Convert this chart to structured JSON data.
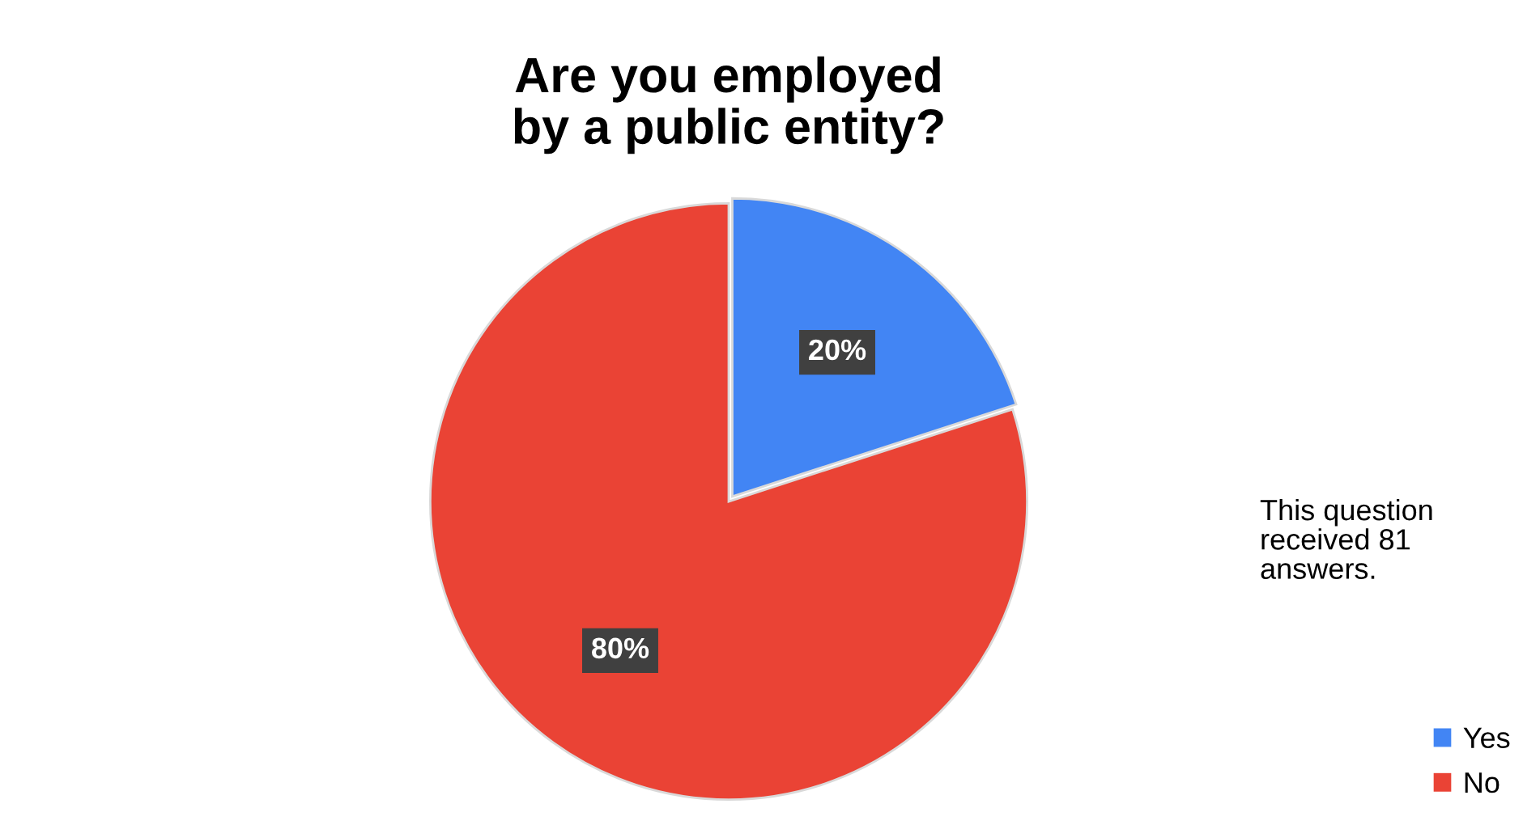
{
  "chart_data": {
    "type": "pie",
    "title": "Are you employed\nby a public entity?",
    "categories": [
      "Yes",
      "No"
    ],
    "values": [
      20,
      80
    ],
    "colors": [
      "#4285f4",
      "#ea4335"
    ],
    "value_labels": [
      "20%",
      "80%"
    ],
    "annotations": [
      "This question\nreceived 81\nanswers."
    ],
    "legend": "bottom right"
  }
}
